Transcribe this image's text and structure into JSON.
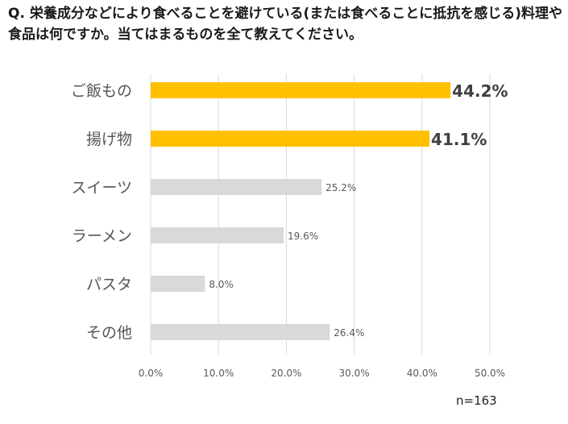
{
  "chart_data": {
    "type": "bar",
    "orientation": "horizontal",
    "title": "Q. 栄養成分などにより食べることを避けている(または食べることに抵抗を感じる)料理や食品は何ですか。当てはまるものを全て教えてください。",
    "categories": [
      "ご飯もの",
      "揚げ物",
      "スイーツ",
      "ラーメン",
      "パスタ",
      "その他"
    ],
    "values": [
      44.2,
      41.1,
      25.2,
      19.6,
      8.0,
      26.4
    ],
    "value_labels": [
      "44.2%",
      "41.1%",
      "25.2%",
      "19.6%",
      "8.0%",
      "26.4%"
    ],
    "highlighted": [
      true,
      true,
      false,
      false,
      false,
      false
    ],
    "xlim": [
      0,
      50
    ],
    "xticks": [
      "0.0%",
      "10.0%",
      "20.0%",
      "30.0%",
      "40.0%",
      "50.0%"
    ],
    "xlabel": "",
    "ylabel": "",
    "grid": true,
    "sample_size": "n=163"
  },
  "colors": {
    "highlight": "#ffc000",
    "normal": "#d9d9d9",
    "grid": "#d9d9d9"
  }
}
